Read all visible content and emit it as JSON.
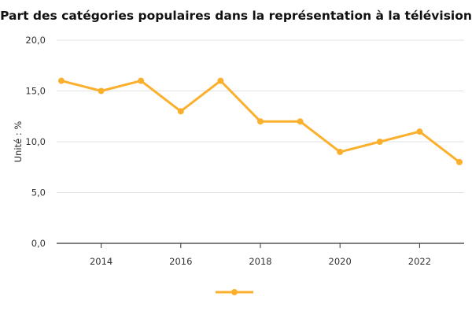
{
  "chart_data": {
    "type": "line",
    "title": "Part des catégories populaires dans la représentation à la télévision",
    "xlabel": "",
    "ylabel": "Unité : %",
    "x": [
      2013,
      2014,
      2015,
      2016,
      2017,
      2018,
      2019,
      2020,
      2021,
      2022,
      2023
    ],
    "series": [
      {
        "name": "",
        "values": [
          16,
          15,
          16,
          13,
          16,
          12,
          12,
          9,
          10,
          11,
          8
        ],
        "color": "#FBB02D"
      }
    ],
    "ylim": [
      0,
      20
    ],
    "xlim": [
      2013,
      2023
    ],
    "yticks": [
      "0,0",
      "5,0",
      "10,0",
      "15,0",
      "20,0"
    ],
    "xticks": [
      "2014",
      "2016",
      "2018",
      "2020",
      "2022"
    ],
    "grid": true,
    "legend": "bottom-center"
  }
}
